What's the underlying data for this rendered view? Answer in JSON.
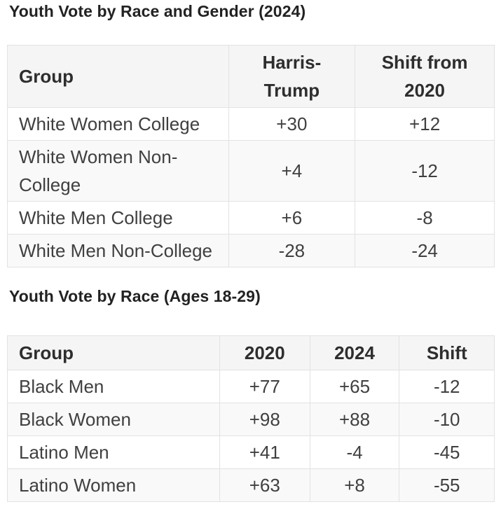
{
  "chart_data": [
    {
      "type": "table",
      "title": "Youth Vote by Race and Gender (2024)",
      "columns": [
        "Group",
        "Harris-Trump",
        "Shift from 2020"
      ],
      "rows": [
        [
          "White Women College",
          "+30",
          "+12"
        ],
        [
          "White Women Non-College",
          "+4",
          "-12"
        ],
        [
          "White Men College",
          "+6",
          "-8"
        ],
        [
          "White Men Non-College",
          "-28",
          "-24"
        ]
      ]
    },
    {
      "type": "table",
      "title": "Youth Vote by Race (Ages 18-29)",
      "columns": [
        "Group",
        "2020",
        "2024",
        "Shift"
      ],
      "rows": [
        [
          "Black Men",
          "+77",
          "+65",
          "-12"
        ],
        [
          "Black Women",
          "+98",
          "+88",
          "-10"
        ],
        [
          "Latino Men",
          "+41",
          "-4",
          "-45"
        ],
        [
          "Latino Women",
          "+63",
          "+8",
          "-55"
        ]
      ]
    }
  ],
  "colors": {
    "page_bg": "#ffffff",
    "header_bg": "#f5f5f5",
    "stripe_bg": "#f9f9f9",
    "border": "#e2e2e2",
    "title_text": "#222222",
    "header_text": "#2e2e2e",
    "cell_text": "#404040"
  }
}
